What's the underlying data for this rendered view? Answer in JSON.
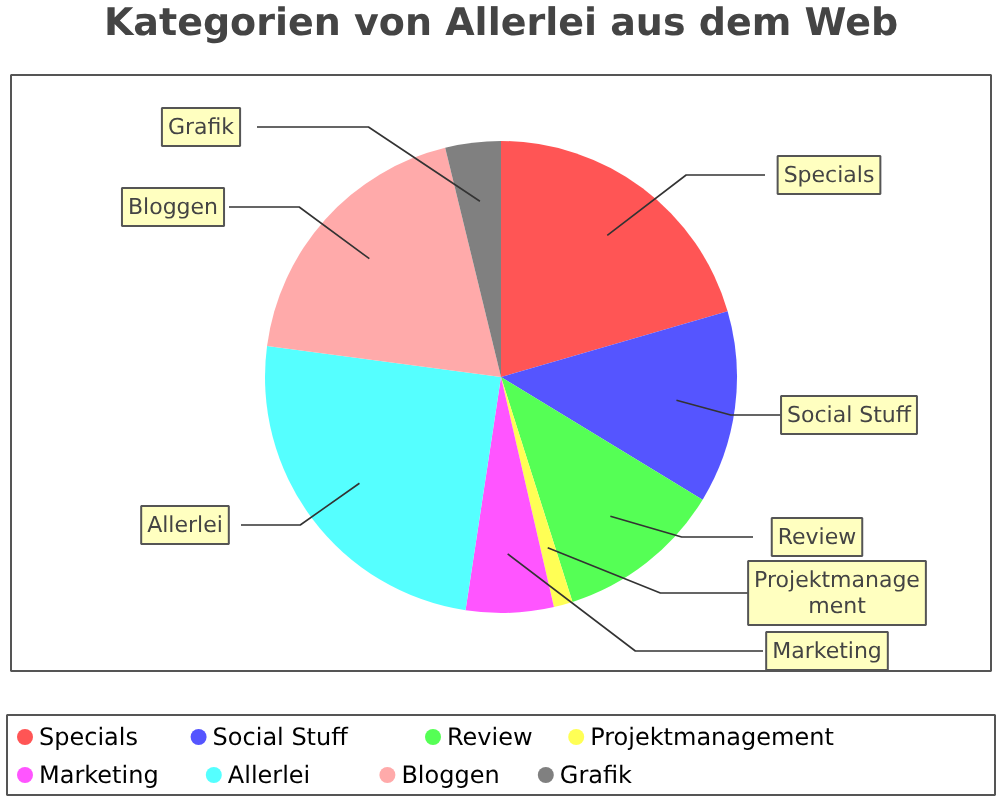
{
  "chart_data": {
    "type": "pie",
    "title": "Kategorien von Allerlei aus dem Web",
    "categories": [
      "Specials",
      "Social Stuff",
      "Review",
      "Projektmanagement",
      "Marketing",
      "Allerlei",
      "Bloggen",
      "Grafik"
    ],
    "values": [
      20.5,
      13.2,
      11.4,
      1.3,
      6.0,
      24.7,
      19.1,
      3.8
    ],
    "colors": [
      "#ff5555",
      "#5555ff",
      "#55ff55",
      "#ffff55",
      "#ff55ff",
      "#55ffff",
      "#ffaaaa",
      "#808080"
    ],
    "legend": "bottom"
  }
}
